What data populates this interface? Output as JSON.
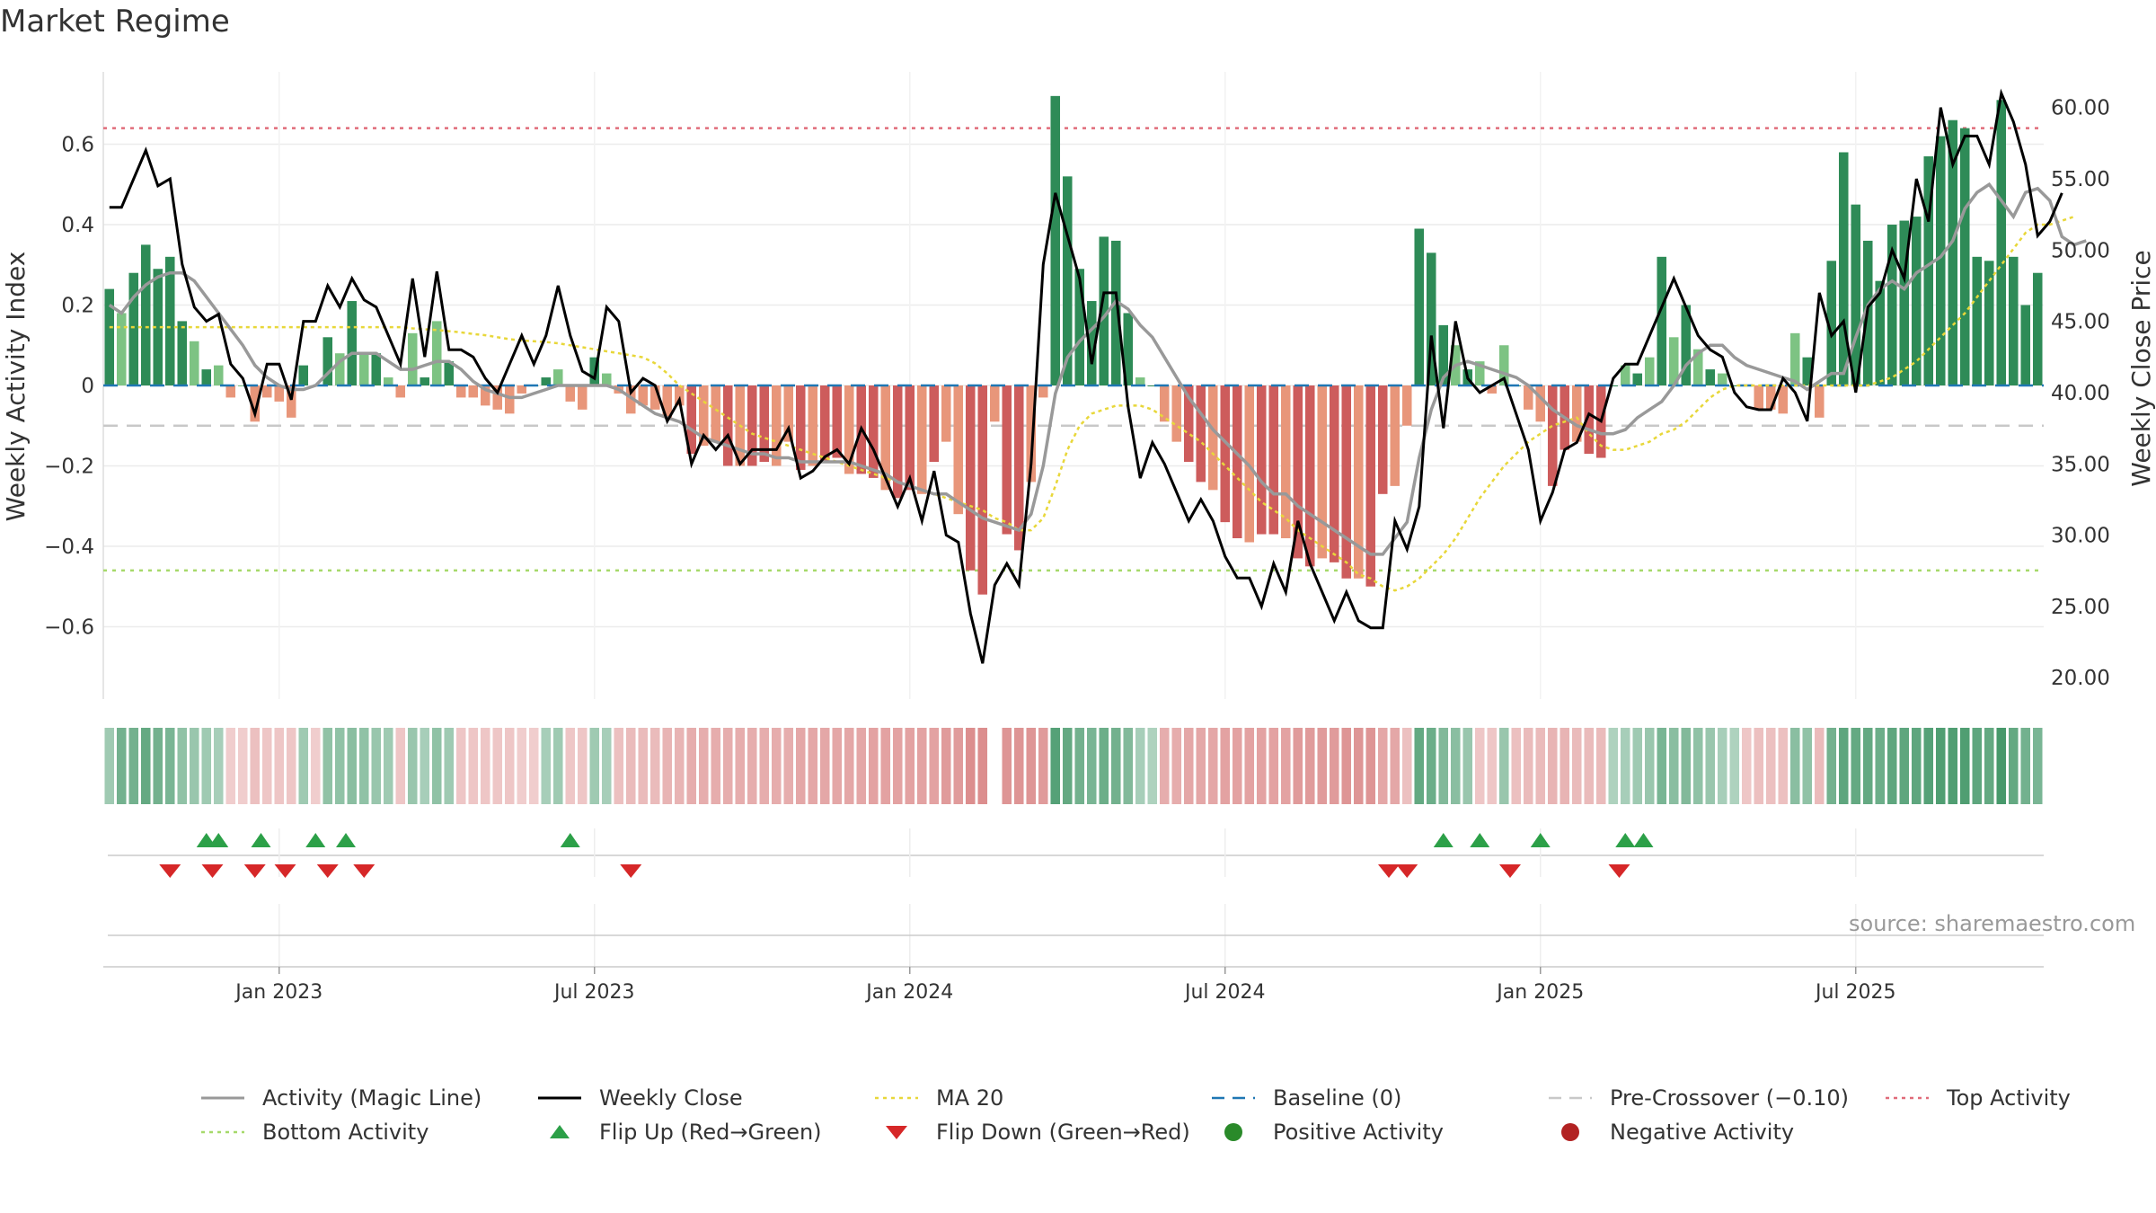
{
  "title": "Market Regime",
  "source": "source: sharemaestro.com",
  "colors": {
    "pos_strong": "#2e8b57",
    "pos_light": "#7dc383",
    "neg_strong": "#cd5c5c",
    "neg_light": "#e8967a",
    "close": "#000000",
    "magic": "#999999",
    "ma20": "#e8d73a",
    "baseline": "#1f77b4",
    "precross": "#c8c8c8",
    "top": "#e06c7a",
    "bottom": "#a6d96a",
    "flip_up": "#2ca048",
    "flip_down": "#d62728"
  },
  "chart_data": {
    "type": "bar",
    "title": "Market Regime",
    "ylabel": "Weekly Activity Index",
    "y2label": "Weekly Close Price",
    "ylim": [
      -0.78,
      0.78
    ],
    "y2lim": [
      18.5,
      62.5
    ],
    "yticks": [
      0.6,
      0.4,
      0.2,
      0,
      -0.2,
      -0.4,
      -0.6
    ],
    "ytick_labels": [
      "0.6",
      "0.4",
      "0.2",
      "0",
      "−0.2",
      "−0.4",
      "−0.6"
    ],
    "y2ticks": [
      60,
      55,
      50,
      45,
      40,
      35,
      30,
      25,
      20
    ],
    "y2tick_labels": [
      "60.00",
      "55.00",
      "50.00",
      "45.00",
      "40.00",
      "35.00",
      "30.00",
      "25.00",
      "20.00"
    ],
    "xticks": [
      {
        "label": "Jan 2023",
        "week": 14
      },
      {
        "label": "Jul 2023",
        "week": 40
      },
      {
        "label": "Jan 2024",
        "week": 66
      },
      {
        "label": "Jul 2024",
        "week": 92
      },
      {
        "label": "Jan 2025",
        "week": 118
      },
      {
        "label": "Jul 2025",
        "week": 144
      }
    ],
    "top_activity": 0.64,
    "bottom_activity": -0.46,
    "pre_crossover": -0.1,
    "baseline": 0,
    "activity": [
      0.24,
      0.18,
      0.28,
      0.35,
      0.29,
      0.32,
      0.16,
      0.11,
      0.04,
      0.05,
      -0.03,
      0.0,
      -0.09,
      -0.03,
      -0.04,
      -0.08,
      0.05,
      0.0,
      0.12,
      0.08,
      0.21,
      0.08,
      0.08,
      0.02,
      -0.03,
      0.13,
      0.02,
      0.16,
      0.06,
      -0.03,
      -0.03,
      -0.05,
      -0.06,
      -0.07,
      -0.02,
      0.0,
      0.02,
      0.04,
      -0.04,
      -0.06,
      0.07,
      0.03,
      -0.02,
      -0.07,
      -0.05,
      -0.06,
      -0.08,
      -0.05,
      -0.17,
      -0.15,
      -0.14,
      -0.2,
      -0.2,
      -0.2,
      -0.19,
      -0.2,
      -0.14,
      -0.21,
      -0.2,
      -0.19,
      -0.18,
      -0.22,
      -0.22,
      -0.23,
      -0.26,
      -0.28,
      -0.26,
      -0.27,
      -0.19,
      -0.14,
      -0.32,
      -0.46,
      -0.52,
      -0.09,
      -0.37,
      -0.41,
      -0.24,
      -0.03,
      0.72,
      0.52,
      0.29,
      0.21,
      0.37,
      0.36,
      0.18,
      0.02,
      0.0,
      -0.09,
      -0.14,
      -0.19,
      -0.24,
      -0.26,
      -0.34,
      -0.38,
      -0.39,
      -0.37,
      -0.37,
      -0.38,
      -0.43,
      -0.45,
      -0.43,
      -0.44,
      -0.48,
      -0.48,
      -0.5,
      -0.27,
      -0.25,
      -0.1,
      0.39,
      0.33,
      0.15,
      0.1,
      0.04,
      0.06,
      -0.02,
      0.1,
      0.0,
      -0.06,
      -0.09,
      -0.25,
      -0.16,
      -0.14,
      -0.17,
      -0.18,
      0.0,
      0.05,
      0.03,
      0.07,
      0.32,
      0.12,
      0.2,
      0.09,
      0.04,
      0.03,
      0.0,
      0.0,
      -0.06,
      -0.06,
      -0.07,
      0.13,
      0.07,
      -0.08,
      0.31,
      0.58,
      0.45,
      0.36,
      0.26,
      0.4,
      0.41,
      0.42,
      0.57,
      0.62,
      0.66,
      0.64,
      0.32,
      0.31,
      0.71,
      0.32,
      0.2,
      0.28
    ],
    "weekly_close": [
      53,
      53,
      55,
      57,
      54.5,
      55,
      49,
      46,
      45,
      45.5,
      42,
      41,
      38.5,
      42,
      42,
      39.5,
      45,
      45,
      47.5,
      46,
      48,
      46.5,
      46,
      44,
      42,
      48,
      42.5,
      48.5,
      43,
      43,
      42.5,
      41,
      40,
      42,
      44,
      42,
      44,
      47.5,
      44,
      41.5,
      41,
      46,
      45,
      40,
      41,
      40.5,
      38,
      39.5,
      35,
      37,
      36,
      37,
      35,
      36,
      36,
      36,
      37.5,
      34,
      34.5,
      35.5,
      36,
      35,
      37.5,
      36,
      34,
      32,
      34,
      31,
      34.5,
      30,
      29.5,
      24.5,
      21,
      26.5,
      28,
      26.5,
      35,
      49,
      54,
      51,
      48,
      42,
      47,
      47,
      39,
      34,
      36.5,
      35,
      33,
      31,
      32.5,
      31,
      28.5,
      27,
      27,
      25,
      28,
      26,
      31,
      28,
      26,
      24,
      26,
      24,
      23.5,
      23.5,
      31,
      29,
      32,
      44,
      37.5,
      45,
      41,
      40,
      40.5,
      41,
      38.5,
      36,
      31,
      33,
      36,
      36.5,
      38.5,
      38,
      41,
      42,
      42,
      44,
      46,
      48,
      46,
      44,
      43,
      42.5,
      40,
      39,
      38.8,
      38.8,
      41,
      40,
      38,
      47,
      44,
      45,
      40,
      46,
      47,
      50,
      48,
      55,
      52,
      60,
      56,
      58,
      58,
      56,
      61,
      59,
      56,
      51,
      52,
      54
    ],
    "magic_line": [
      0.2,
      0.18,
      0.22,
      0.25,
      0.27,
      0.28,
      0.28,
      0.26,
      0.22,
      0.18,
      0.14,
      0.1,
      0.05,
      0.02,
      0.0,
      -0.01,
      -0.01,
      0.0,
      0.03,
      0.06,
      0.08,
      0.08,
      0.08,
      0.06,
      0.04,
      0.04,
      0.05,
      0.06,
      0.06,
      0.04,
      0.01,
      -0.01,
      -0.02,
      -0.03,
      -0.03,
      -0.02,
      -0.01,
      0.0,
      0.0,
      0.0,
      0.0,
      0.0,
      -0.01,
      -0.03,
      -0.05,
      -0.07,
      -0.08,
      -0.09,
      -0.11,
      -0.13,
      -0.14,
      -0.15,
      -0.16,
      -0.17,
      -0.17,
      -0.18,
      -0.18,
      -0.19,
      -0.19,
      -0.19,
      -0.19,
      -0.19,
      -0.2,
      -0.21,
      -0.22,
      -0.24,
      -0.25,
      -0.26,
      -0.27,
      -0.27,
      -0.29,
      -0.31,
      -0.33,
      -0.34,
      -0.35,
      -0.36,
      -0.32,
      -0.2,
      -0.02,
      0.07,
      0.11,
      0.14,
      0.17,
      0.21,
      0.19,
      0.15,
      0.12,
      0.07,
      0.02,
      -0.03,
      -0.07,
      -0.11,
      -0.14,
      -0.17,
      -0.2,
      -0.24,
      -0.27,
      -0.27,
      -0.3,
      -0.32,
      -0.34,
      -0.36,
      -0.38,
      -0.4,
      -0.42,
      -0.42,
      -0.38,
      -0.34,
      -0.18,
      -0.06,
      0.02,
      0.05,
      0.06,
      0.05,
      0.04,
      0.03,
      0.02,
      0.0,
      -0.03,
      -0.06,
      -0.08,
      -0.1,
      -0.11,
      -0.12,
      -0.12,
      -0.11,
      -0.08,
      -0.06,
      -0.04,
      0.0,
      0.05,
      0.08,
      0.1,
      0.1,
      0.07,
      0.05,
      0.04,
      0.03,
      0.02,
      0.01,
      -0.01,
      0.01,
      0.03,
      0.03,
      0.12,
      0.2,
      0.24,
      0.26,
      0.24,
      0.28,
      0.3,
      0.32,
      0.36,
      0.44,
      0.48,
      0.5,
      0.46,
      0.42,
      0.48,
      0.49,
      0.46,
      0.37,
      0.35,
      0.36
    ],
    "ma20": [
      0.145,
      0.145,
      0.145,
      0.145,
      0.145,
      0.145,
      0.145,
      0.145,
      0.145,
      0.145,
      0.145,
      0.145,
      0.145,
      0.145,
      0.145,
      0.145,
      0.145,
      0.145,
      0.145,
      0.145,
      0.145,
      0.145,
      0.145,
      0.145,
      0.145,
      0.142,
      0.14,
      0.138,
      0.135,
      0.132,
      0.128,
      0.125,
      0.12,
      0.115,
      0.112,
      0.11,
      0.108,
      0.105,
      0.1,
      0.095,
      0.09,
      0.085,
      0.08,
      0.075,
      0.07,
      0.055,
      0.03,
      0.0,
      -0.02,
      -0.04,
      -0.06,
      -0.08,
      -0.1,
      -0.12,
      -0.13,
      -0.14,
      -0.15,
      -0.16,
      -0.17,
      -0.18,
      -0.19,
      -0.2,
      -0.21,
      -0.22,
      -0.23,
      -0.24,
      -0.25,
      -0.26,
      -0.27,
      -0.28,
      -0.29,
      -0.3,
      -0.31,
      -0.33,
      -0.34,
      -0.36,
      -0.36,
      -0.33,
      -0.25,
      -0.16,
      -0.1,
      -0.07,
      -0.06,
      -0.05,
      -0.05,
      -0.05,
      -0.06,
      -0.08,
      -0.1,
      -0.12,
      -0.14,
      -0.17,
      -0.2,
      -0.23,
      -0.26,
      -0.29,
      -0.31,
      -0.33,
      -0.36,
      -0.38,
      -0.4,
      -0.42,
      -0.44,
      -0.47,
      -0.48,
      -0.5,
      -0.51,
      -0.5,
      -0.48,
      -0.45,
      -0.42,
      -0.38,
      -0.33,
      -0.28,
      -0.24,
      -0.2,
      -0.17,
      -0.14,
      -0.12,
      -0.1,
      -0.09,
      -0.08,
      -0.12,
      -0.15,
      -0.16,
      -0.16,
      -0.15,
      -0.14,
      -0.12,
      -0.11,
      -0.09,
      -0.06,
      -0.03,
      -0.01,
      0.0,
      0.0,
      0.0,
      0.0,
      0.0,
      0.0,
      0.0,
      0.0,
      0.0,
      0.0,
      0.0,
      0.0,
      0.01,
      0.02,
      0.04,
      0.06,
      0.09,
      0.12,
      0.15,
      0.18,
      0.22,
      0.26,
      0.3,
      0.34,
      0.38,
      0.4,
      0.4,
      0.41,
      0.42
    ],
    "regime_strip": [
      0.3,
      0.6,
      0.6,
      0.7,
      0.6,
      0.55,
      0.4,
      0.35,
      0.3,
      0.25,
      -0.15,
      -0.15,
      -0.25,
      -0.2,
      -0.2,
      -0.2,
      0.3,
      -0.15,
      0.4,
      0.4,
      0.45,
      0.4,
      0.35,
      0.3,
      -0.2,
      0.35,
      0.25,
      0.4,
      0.3,
      -0.2,
      -0.2,
      -0.2,
      -0.2,
      -0.2,
      -0.15,
      -0.15,
      0.25,
      0.3,
      -0.2,
      -0.2,
      0.3,
      0.25,
      -0.25,
      -0.3,
      -0.3,
      -0.3,
      -0.35,
      -0.35,
      -0.4,
      -0.4,
      -0.4,
      -0.4,
      -0.4,
      -0.4,
      -0.4,
      -0.4,
      -0.4,
      -0.45,
      -0.45,
      -0.45,
      -0.45,
      -0.45,
      -0.45,
      -0.5,
      -0.5,
      -0.5,
      -0.5,
      -0.5,
      -0.5,
      -0.55,
      -0.55,
      -0.65,
      -0.65,
      null,
      -0.6,
      -0.6,
      -0.6,
      -0.55,
      0.8,
      0.7,
      0.6,
      0.55,
      0.65,
      0.6,
      0.5,
      0.25,
      0.2,
      -0.4,
      -0.4,
      -0.45,
      -0.45,
      -0.45,
      -0.5,
      -0.5,
      -0.5,
      -0.5,
      -0.5,
      -0.5,
      -0.55,
      -0.55,
      -0.55,
      -0.55,
      -0.6,
      -0.6,
      -0.6,
      -0.45,
      -0.45,
      -0.25,
      0.7,
      0.65,
      0.5,
      0.45,
      0.35,
      -0.2,
      -0.2,
      0.35,
      -0.25,
      -0.3,
      -0.3,
      -0.35,
      -0.35,
      -0.3,
      -0.3,
      -0.3,
      0.2,
      0.25,
      0.3,
      0.35,
      0.55,
      0.45,
      0.5,
      0.4,
      0.35,
      0.25,
      0.2,
      -0.2,
      -0.25,
      -0.25,
      -0.25,
      0.45,
      0.4,
      -0.3,
      0.6,
      0.75,
      0.7,
      0.7,
      0.65,
      0.75,
      0.75,
      0.75,
      0.8,
      0.85,
      0.85,
      0.85,
      0.75,
      0.7,
      0.9,
      0.7,
      0.6,
      0.55
    ],
    "flip_up_weeks": [
      8,
      9,
      12.5,
      17,
      19.5,
      38,
      110,
      113,
      118,
      125,
      126.5
    ],
    "flip_down_weeks": [
      5,
      8.5,
      12,
      14.5,
      18,
      21,
      43,
      105.5,
      107,
      115.5,
      124.5
    ],
    "legend": [
      {
        "label": "Activity (Magic Line)",
        "kind": "line",
        "key": "magic"
      },
      {
        "label": "Weekly Close",
        "kind": "line",
        "key": "close"
      },
      {
        "label": "MA 20",
        "kind": "dotted",
        "key": "ma20"
      },
      {
        "label": "Baseline (0)",
        "kind": "dashed",
        "key": "baseline"
      },
      {
        "label": "Pre-Crossover (−0.10)",
        "kind": "dashed",
        "key": "precross"
      },
      {
        "label": "Top Activity",
        "kind": "dotted",
        "key": "top"
      },
      {
        "label": "Bottom Activity",
        "kind": "dotted",
        "key": "bottom"
      },
      {
        "label": "Flip Up (Red→Green)",
        "kind": "tri-up",
        "key": "flip_up"
      },
      {
        "label": "Flip Down (Green→Red)",
        "kind": "tri-down",
        "key": "flip_down"
      },
      {
        "label": "Positive Activity",
        "kind": "dot",
        "key": "pos_strong"
      },
      {
        "label": "Negative Activity",
        "kind": "dot",
        "key": "neg_dot"
      }
    ]
  }
}
